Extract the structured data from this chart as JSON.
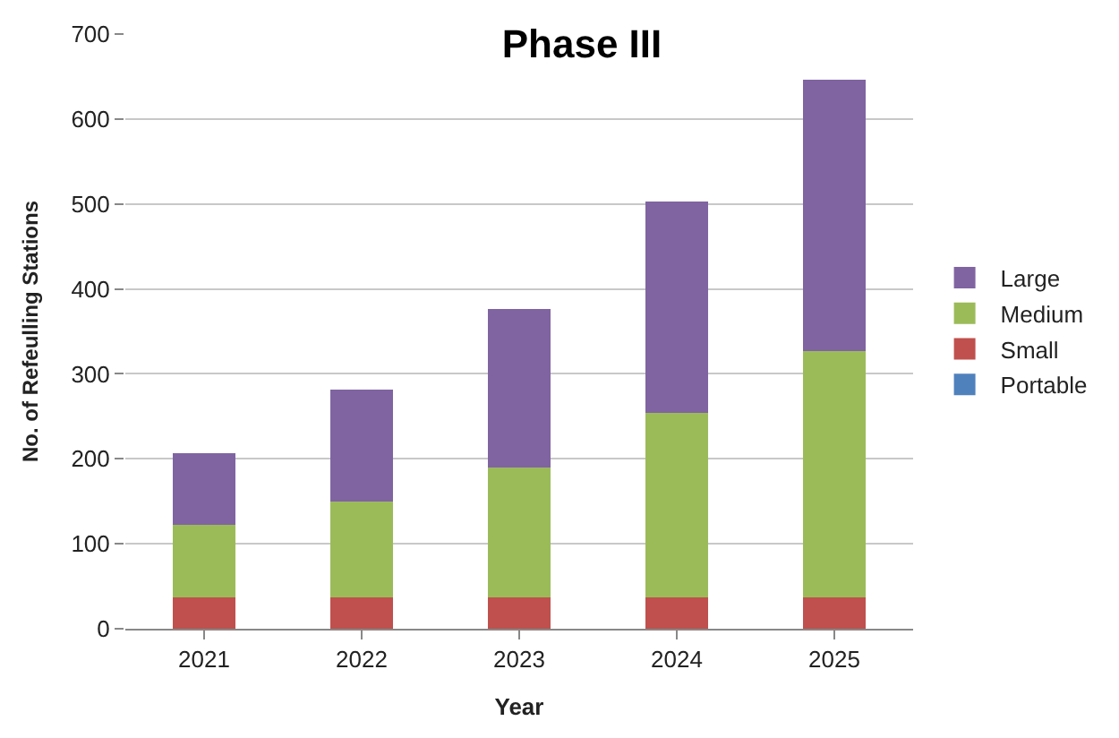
{
  "chart_data": {
    "type": "bar",
    "title": "Phase III",
    "xlabel": "Year",
    "ylabel": "No. of Refeulling Stations",
    "categories": [
      "2021",
      "2022",
      "2023",
      "2024",
      "2025"
    ],
    "stacked": true,
    "series": [
      {
        "name": "Portable",
        "color": "#4f81bd",
        "values": [
          0,
          0,
          0,
          0,
          0
        ]
      },
      {
        "name": "Small",
        "color": "#c0504d",
        "values": [
          37,
          37,
          37,
          37,
          37
        ]
      },
      {
        "name": "Medium",
        "color": "#9bbb59",
        "values": [
          85,
          113,
          153,
          217,
          290
        ]
      },
      {
        "name": "Large",
        "color": "#8064a2",
        "values": [
          85,
          132,
          186,
          249,
          319
        ]
      }
    ],
    "ylim": [
      0,
      700
    ],
    "yticks": [
      0,
      100,
      200,
      300,
      400,
      500,
      600,
      700
    ],
    "grid": "y",
    "legend": "right"
  }
}
